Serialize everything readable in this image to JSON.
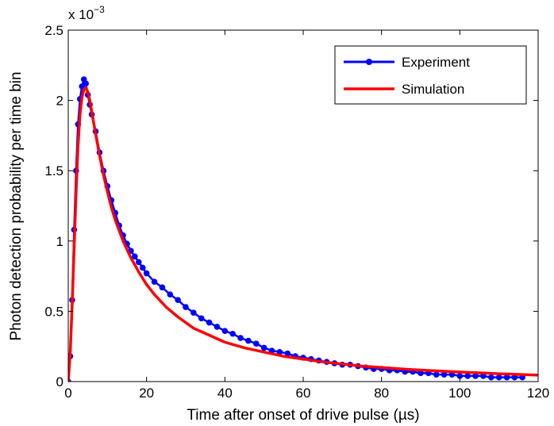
{
  "chart_data": {
    "type": "line",
    "xlabel": "Time after onset of drive pulse (µs)",
    "ylabel": "Photon detection probability per time bin",
    "y_multiplier": "x 10",
    "y_exponent": "−3",
    "xlim": [
      0,
      120
    ],
    "ylim": [
      0,
      2.5
    ],
    "x_ticks": [
      0,
      20,
      40,
      60,
      80,
      100,
      120
    ],
    "y_ticks": [
      0,
      0.5,
      1,
      1.5,
      2,
      2.5
    ],
    "x_tick_labels": [
      "0",
      "20",
      "40",
      "60",
      "80",
      "100",
      "120"
    ],
    "y_tick_labels": [
      "0",
      "0.5",
      "1",
      "1.5",
      "2",
      "2.5"
    ],
    "grid": false,
    "legend": {
      "position": "top-right",
      "entries": [
        "Experiment",
        "Simulation"
      ]
    },
    "series": [
      {
        "name": "Experiment",
        "style": "line-markers",
        "color": "#0000ff",
        "points": [
          [
            0.0,
            0.0
          ],
          [
            0.5,
            0.18
          ],
          [
            1.0,
            0.58
          ],
          [
            1.5,
            1.08
          ],
          [
            2.0,
            1.5
          ],
          [
            2.5,
            1.83
          ],
          [
            3.0,
            2.01
          ],
          [
            3.5,
            2.1
          ],
          [
            4.0,
            2.15
          ],
          [
            4.5,
            2.12
          ],
          [
            5.0,
            2.04
          ],
          [
            5.5,
            1.97
          ],
          [
            6.0,
            1.9
          ],
          [
            7.0,
            1.78
          ],
          [
            8.0,
            1.63
          ],
          [
            9.0,
            1.5
          ],
          [
            10.0,
            1.39
          ],
          [
            11.0,
            1.29
          ],
          [
            12.0,
            1.2
          ],
          [
            13.0,
            1.11
          ],
          [
            14.0,
            1.04
          ],
          [
            15.0,
            0.98
          ],
          [
            16.0,
            0.93
          ],
          [
            17.0,
            0.89
          ],
          [
            18.0,
            0.85
          ],
          [
            19.0,
            0.81
          ],
          [
            20.0,
            0.77
          ],
          [
            22.0,
            0.71
          ],
          [
            24.0,
            0.67
          ],
          [
            26.0,
            0.62
          ],
          [
            28.0,
            0.58
          ],
          [
            30.0,
            0.53
          ],
          [
            32.0,
            0.49
          ],
          [
            34.0,
            0.45
          ],
          [
            36.0,
            0.42
          ],
          [
            38.0,
            0.39
          ],
          [
            40.0,
            0.36
          ],
          [
            42.0,
            0.34
          ],
          [
            44.0,
            0.31
          ],
          [
            46.0,
            0.29
          ],
          [
            48.0,
            0.27
          ],
          [
            50.0,
            0.24
          ],
          [
            52.0,
            0.22
          ],
          [
            54.0,
            0.21
          ],
          [
            56.0,
            0.2
          ],
          [
            58.0,
            0.18
          ],
          [
            60.0,
            0.17
          ],
          [
            62.0,
            0.16
          ],
          [
            64.0,
            0.15
          ],
          [
            66.0,
            0.14
          ],
          [
            68.0,
            0.13
          ],
          [
            70.0,
            0.12
          ],
          [
            72.0,
            0.12
          ],
          [
            74.0,
            0.11
          ],
          [
            76.0,
            0.1
          ],
          [
            78.0,
            0.09
          ],
          [
            80.0,
            0.09
          ],
          [
            82.0,
            0.08
          ],
          [
            84.0,
            0.08
          ],
          [
            86.0,
            0.07
          ],
          [
            88.0,
            0.07
          ],
          [
            90.0,
            0.06
          ],
          [
            92.0,
            0.06
          ],
          [
            94.0,
            0.05
          ],
          [
            96.0,
            0.05
          ],
          [
            98.0,
            0.05
          ],
          [
            100.0,
            0.04
          ],
          [
            102.0,
            0.04
          ],
          [
            104.0,
            0.04
          ],
          [
            106.0,
            0.04
          ],
          [
            108.0,
            0.03
          ],
          [
            110.0,
            0.03
          ],
          [
            112.0,
            0.03
          ],
          [
            114.0,
            0.03
          ],
          [
            116.0,
            0.03
          ]
        ]
      },
      {
        "name": "Simulation",
        "style": "line",
        "color": "#ff0000",
        "points": [
          [
            0.0,
            0.0
          ],
          [
            0.5,
            0.2
          ],
          [
            1.0,
            0.55
          ],
          [
            1.5,
            0.95
          ],
          [
            2.0,
            1.35
          ],
          [
            2.5,
            1.68
          ],
          [
            3.0,
            1.9
          ],
          [
            3.5,
            2.02
          ],
          [
            4.0,
            2.08
          ],
          [
            4.5,
            2.09
          ],
          [
            5.0,
            2.06
          ],
          [
            5.5,
            2.0
          ],
          [
            6.0,
            1.92
          ],
          [
            7.0,
            1.76
          ],
          [
            8.0,
            1.61
          ],
          [
            9.0,
            1.47
          ],
          [
            10.0,
            1.35
          ],
          [
            11.0,
            1.24
          ],
          [
            12.0,
            1.15
          ],
          [
            14.0,
            1.0
          ],
          [
            16.0,
            0.88
          ],
          [
            18.0,
            0.78
          ],
          [
            20.0,
            0.69
          ],
          [
            22.0,
            0.62
          ],
          [
            25.0,
            0.53
          ],
          [
            28.0,
            0.46
          ],
          [
            32.0,
            0.38
          ],
          [
            36.0,
            0.33
          ],
          [
            40.0,
            0.28
          ],
          [
            45.0,
            0.24
          ],
          [
            50.0,
            0.21
          ],
          [
            55.0,
            0.18
          ],
          [
            60.0,
            0.16
          ],
          [
            65.0,
            0.14
          ],
          [
            70.0,
            0.125
          ],
          [
            75.0,
            0.11
          ],
          [
            80.0,
            0.1
          ],
          [
            85.0,
            0.09
          ],
          [
            90.0,
            0.082
          ],
          [
            95.0,
            0.075
          ],
          [
            100.0,
            0.068
          ],
          [
            105.0,
            0.062
          ],
          [
            110.0,
            0.056
          ],
          [
            115.0,
            0.051
          ],
          [
            120.0,
            0.046
          ]
        ]
      }
    ]
  }
}
